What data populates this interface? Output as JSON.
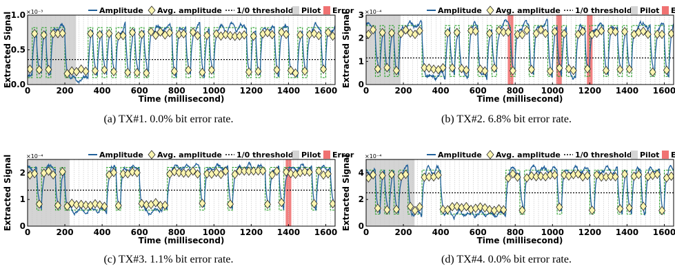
{
  "legend": {
    "amplitude": "Amplitude",
    "avg_amplitude": "Avg. amplitude",
    "threshold": "1/0 threshold",
    "pilot": "Pilot",
    "error": "Error"
  },
  "colors": {
    "amplitude": "#1f5f99",
    "avg_marker_fill": "#fbf5b0",
    "avg_marker_stroke": "#222222",
    "threshold": "#000000",
    "pilot": "#d4d4d4",
    "error": "#f07272",
    "bits": "#2aa02a",
    "grid": "#c8c8c8"
  },
  "chart_data": [
    {
      "type": "line",
      "id": "a",
      "caption": "(a)  TX#1. 0.0% bit error rate.",
      "xlabel": "Time (millisecond)",
      "ylabel": "Extracted Signal",
      "exponent": "×10⁻³",
      "xlim": [
        0,
        1650
      ],
      "ylim": [
        0,
        1.0
      ],
      "yticks": [
        {
          "v": 0,
          "t": "0.0"
        },
        {
          "v": 0.5,
          "t": "0.5"
        },
        {
          "v": 1.0,
          "t": "1.0"
        }
      ],
      "xticks": [
        0,
        200,
        400,
        600,
        800,
        1000,
        1200,
        1400,
        1600
      ],
      "threshold": 0.36,
      "low": 0.1,
      "high": 0.82,
      "pilot": [
        0,
        260
      ],
      "errors": [],
      "bits": [
        0,
        1,
        0,
        1,
        0,
        1,
        1,
        1,
        0,
        0,
        0,
        0,
        0,
        1,
        0,
        1,
        0,
        1,
        0,
        1,
        1,
        0,
        1,
        0,
        1,
        0,
        1,
        1,
        1,
        1,
        1,
        0,
        1,
        1,
        0,
        1,
        1,
        0,
        1,
        0,
        1,
        1,
        1,
        1,
        1,
        1,
        1,
        0,
        1,
        0,
        1,
        1,
        1,
        0,
        1,
        1,
        0,
        0,
        1,
        0,
        1,
        1,
        1,
        0,
        1,
        1
      ]
    },
    {
      "type": "line",
      "id": "b",
      "caption": "(b)  TX#2. 6.8% bit error rate.",
      "xlabel": "Time (millisecond)",
      "ylabel": "Extracted Signal",
      "exponent": "×10⁻⁴",
      "xlim": [
        0,
        1650
      ],
      "ylim": [
        0,
        3
      ],
      "yticks": [
        {
          "v": 0,
          "t": "0"
        },
        {
          "v": 1,
          "t": "1"
        },
        {
          "v": 2,
          "t": "2"
        },
        {
          "v": 3,
          "t": "3"
        }
      ],
      "xticks": [
        0,
        200,
        400,
        600,
        800,
        1000,
        1200,
        1400,
        1600
      ],
      "threshold": 1.15,
      "low": 0.35,
      "high": 2.55,
      "pilot": [
        0,
        185
      ],
      "errors": [
        [
          760,
          790
        ],
        [
          1020,
          1050
        ],
        [
          1185,
          1215
        ]
      ],
      "bits": [
        1,
        1,
        0,
        1,
        0,
        1,
        0,
        1,
        1,
        1,
        1,
        1,
        0,
        0,
        0,
        0,
        0,
        1,
        0,
        1,
        0,
        0,
        1,
        1,
        0,
        0,
        1,
        0,
        1,
        1,
        1,
        0,
        1,
        1,
        1,
        0,
        1,
        1,
        1,
        0,
        1,
        0,
        1,
        0,
        0,
        1,
        1,
        0,
        1,
        1,
        1,
        0,
        1,
        1,
        0,
        1,
        0,
        1,
        1,
        1,
        1,
        0,
        1,
        1,
        0,
        1
      ]
    },
    {
      "type": "line",
      "id": "c",
      "caption": "(c)  TX#3. 1.1% bit error rate.",
      "xlabel": "Time (millisecond)",
      "ylabel": "Extracted Signal",
      "exponent": "×10⁻⁴",
      "xlim": [
        0,
        1650
      ],
      "ylim": [
        0,
        2.5
      ],
      "yticks": [
        {
          "v": 0,
          "t": "0"
        },
        {
          "v": 1,
          "t": "1"
        },
        {
          "v": 2,
          "t": "2"
        }
      ],
      "xticks": [
        0,
        200,
        400,
        600,
        800,
        1000,
        1200,
        1400,
        1600
      ],
      "threshold": 1.35,
      "low": 0.6,
      "high": 2.2,
      "pilot": [
        0,
        225
      ],
      "errors": [
        [
          1385,
          1415
        ]
      ],
      "bits": [
        1,
        1,
        0,
        1,
        1,
        1,
        0,
        1,
        0,
        0,
        0,
        0,
        0,
        0,
        0,
        0,
        0,
        1,
        1,
        0,
        1,
        1,
        1,
        1,
        0,
        0,
        0,
        0,
        0,
        0,
        1,
        1,
        1,
        1,
        1,
        1,
        1,
        0,
        1,
        1,
        1,
        1,
        1,
        0,
        1,
        1,
        1,
        1,
        1,
        1,
        1,
        0,
        1,
        1,
        0,
        1,
        1,
        1,
        1,
        1,
        1,
        0,
        1,
        1,
        1,
        0
      ]
    },
    {
      "type": "line",
      "id": "d",
      "caption": "(d)  TX#4. 0.0% bit error rate.",
      "xlabel": "Time (millisecond)",
      "ylabel": "Extracted Signal",
      "exponent": "×10⁻⁴",
      "xlim": [
        0,
        1650
      ],
      "ylim": [
        0,
        5
      ],
      "yticks": [
        {
          "v": 0,
          "t": "0"
        },
        {
          "v": 2,
          "t": "2"
        },
        {
          "v": 4,
          "t": "4"
        }
      ],
      "xticks": [
        0,
        200,
        400,
        600,
        800,
        1000,
        1200,
        1400,
        1600
      ],
      "threshold": 2.5,
      "low": 0.9,
      "high": 4.2,
      "pilot": [
        0,
        260
      ],
      "errors": [],
      "bits": [
        1,
        1,
        0,
        1,
        0,
        1,
        0,
        1,
        1,
        0,
        0,
        0,
        1,
        1,
        1,
        1,
        0,
        0,
        0,
        0,
        0,
        0,
        0,
        0,
        0,
        0,
        0,
        0,
        0,
        0,
        1,
        1,
        1,
        0,
        1,
        1,
        1,
        1,
        1,
        1,
        1,
        0,
        1,
        1,
        1,
        1,
        1,
        1,
        0,
        1,
        1,
        1,
        1,
        1,
        0,
        1,
        0,
        1,
        1,
        0,
        1,
        1,
        1,
        0,
        1,
        1
      ]
    }
  ]
}
